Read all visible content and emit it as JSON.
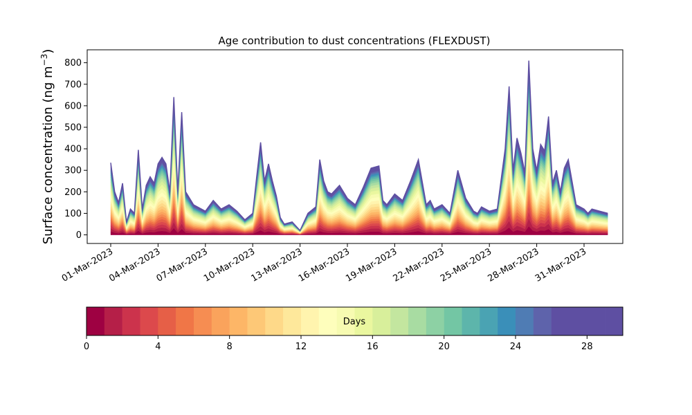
{
  "chart_data": {
    "type": "area",
    "stacked": true,
    "title": "Age contribution to dust concentrations (FLEXDUST)",
    "ylabel": "Surface concentration (ng m",
    "ylabel_sup": "−3",
    "ylabel_close": ")",
    "xlabel": "",
    "ylim": [
      -40,
      860
    ],
    "yticks": [
      0,
      100,
      200,
      300,
      400,
      500,
      600,
      700,
      800
    ],
    "x_start": "2023-03-01",
    "x_end": "2023-04-02",
    "xticks": [
      {
        "date": "2023-03-01",
        "label": "01-Mar-2023"
      },
      {
        "date": "2023-03-04",
        "label": "04-Mar-2023"
      },
      {
        "date": "2023-03-07",
        "label": "07-Mar-2023"
      },
      {
        "date": "2023-03-10",
        "label": "10-Mar-2023"
      },
      {
        "date": "2023-03-13",
        "label": "13-Mar-2023"
      },
      {
        "date": "2023-03-16",
        "label": "16-Mar-2023"
      },
      {
        "date": "2023-03-19",
        "label": "19-Mar-2023"
      },
      {
        "date": "2023-03-22",
        "label": "22-Mar-2023"
      },
      {
        "date": "2023-03-25",
        "label": "25-Mar-2023"
      },
      {
        "date": "2023-03-28",
        "label": "28-Mar-2023"
      },
      {
        "date": "2023-03-31",
        "label": "31-Mar-2023"
      }
    ],
    "total": {
      "x": [
        "2023-03-01",
        "2023-03-01T06:00",
        "2023-03-01T12:00",
        "2023-03-01T18:00",
        "2023-03-02",
        "2023-03-02T06:00",
        "2023-03-02T12:00",
        "2023-03-02T18:00",
        "2023-03-03",
        "2023-03-03T06:00",
        "2023-03-03T12:00",
        "2023-03-03T18:00",
        "2023-03-04",
        "2023-03-04T06:00",
        "2023-03-04T12:00",
        "2023-03-04T18:00",
        "2023-03-05",
        "2023-03-05T06:00",
        "2023-03-05T12:00",
        "2023-03-05T18:00",
        "2023-03-06",
        "2023-03-06T06:00",
        "2023-03-06T12:00",
        "2023-03-07",
        "2023-03-07T12:00",
        "2023-03-08",
        "2023-03-08T12:00",
        "2023-03-09",
        "2023-03-09T12:00",
        "2023-03-10",
        "2023-03-10T06:00",
        "2023-03-10T12:00",
        "2023-03-10T18:00",
        "2023-03-11",
        "2023-03-11T06:00",
        "2023-03-11T12:00",
        "2023-03-11T18:00",
        "2023-03-12",
        "2023-03-12T12:00",
        "2023-03-13",
        "2023-03-13T12:00",
        "2023-03-14",
        "2023-03-14T06:00",
        "2023-03-14T12:00",
        "2023-03-14T18:00",
        "2023-03-15",
        "2023-03-15T12:00",
        "2023-03-16",
        "2023-03-16T12:00",
        "2023-03-17",
        "2023-03-17T12:00",
        "2023-03-18",
        "2023-03-18T06:00",
        "2023-03-18T12:00",
        "2023-03-19",
        "2023-03-19T12:00",
        "2023-03-20",
        "2023-03-20T12:00",
        "2023-03-21",
        "2023-03-21T06:00",
        "2023-03-21T12:00",
        "2023-03-22",
        "2023-03-22T12:00",
        "2023-03-23",
        "2023-03-23T12:00",
        "2023-03-24",
        "2023-03-24T06:00",
        "2023-03-24T12:00",
        "2023-03-25",
        "2023-03-25T12:00",
        "2023-03-26",
        "2023-03-26T06:00",
        "2023-03-26T12:00",
        "2023-03-26T18:00",
        "2023-03-27",
        "2023-03-27T06:00",
        "2023-03-27T12:00",
        "2023-03-27T18:00",
        "2023-03-28",
        "2023-03-28T06:00",
        "2023-03-28T12:00",
        "2023-03-28T18:00",
        "2023-03-29",
        "2023-03-29T06:00",
        "2023-03-29T12:00",
        "2023-03-29T18:00",
        "2023-03-30",
        "2023-03-30T12:00",
        "2023-03-31",
        "2023-03-31T06:00",
        "2023-03-31T12:00",
        "2023-04-01",
        "2023-04-01T12:00"
      ],
      "y": [
        335,
        200,
        150,
        240,
        60,
        120,
        100,
        395,
        120,
        230,
        270,
        240,
        330,
        360,
        330,
        200,
        640,
        200,
        570,
        200,
        170,
        140,
        130,
        110,
        160,
        120,
        140,
        110,
        70,
        100,
        270,
        430,
        250,
        330,
        250,
        180,
        80,
        50,
        60,
        20,
        100,
        130,
        350,
        250,
        200,
        190,
        230,
        170,
        140,
        220,
        310,
        320,
        160,
        140,
        190,
        160,
        250,
        350,
        140,
        160,
        120,
        140,
        100,
        300,
        170,
        110,
        100,
        130,
        110,
        120,
        400,
        690,
        300,
        450,
        380,
        290,
        810,
        400,
        300,
        420,
        390,
        550,
        240,
        300,
        200,
        310,
        350,
        140,
        120,
        100,
        120,
        110,
        100
      ]
    },
    "age_weights": [
      0.05,
      0.045,
      0.04,
      0.035,
      0.035,
      0.032,
      0.032,
      0.032,
      0.035,
      0.038,
      0.04,
      0.042,
      0.045,
      0.048,
      0.05,
      0.05,
      0.045,
      0.04,
      0.035,
      0.03,
      0.028,
      0.025,
      0.022,
      0.02,
      0.02,
      0.02,
      0.018,
      0.018,
      0.015,
      0.014
    ],
    "colorbar": {
      "label": "Days",
      "min": 0,
      "max": 30,
      "ticks": [
        0,
        4,
        8,
        12,
        16,
        20,
        24,
        28
      ],
      "colors": [
        "#9e0142",
        "#b51f48",
        "#cc334c",
        "#dc494c",
        "#e65f47",
        "#f07647",
        "#f68d52",
        "#faa35c",
        "#fdb667",
        "#fdc877",
        "#fed989",
        "#fee89b",
        "#fff4ae",
        "#fefebc",
        "#f7fbb1",
        "#eaf79f",
        "#d8ef9b",
        "#c3e69f",
        "#a8dca2",
        "#8dd1a4",
        "#73c6a4",
        "#5db5ab",
        "#4aa3b3",
        "#3a8fb9",
        "#4f7cb4",
        "#5e63ab",
        "#5e4fa2",
        "#5e4fa2",
        "#5e4fa2",
        "#5e4fa2"
      ]
    }
  }
}
